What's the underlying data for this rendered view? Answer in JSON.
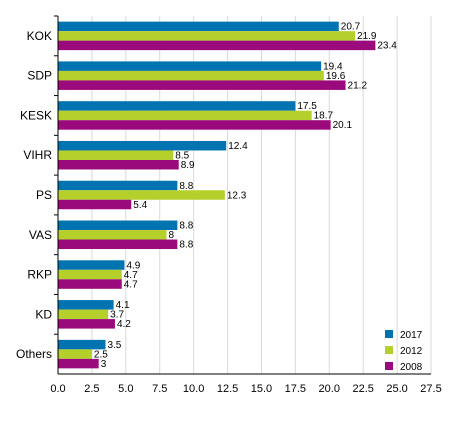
{
  "chart_data": {
    "type": "bar",
    "orientation": "horizontal",
    "categories": [
      "KOK",
      "SDP",
      "KESK",
      "VIHR",
      "PS",
      "VAS",
      "RKP",
      "KD",
      "Others"
    ],
    "series": [
      {
        "name": "2017",
        "color": "#0073b0",
        "values": [
          20.7,
          19.4,
          17.5,
          12.4,
          8.8,
          8.8,
          4.9,
          4.1,
          3.5
        ]
      },
      {
        "name": "2012",
        "color": "#b5cf2b",
        "values": [
          21.9,
          19.6,
          18.7,
          8.5,
          12.3,
          8.0,
          4.7,
          3.7,
          2.5
        ]
      },
      {
        "name": "2008",
        "color": "#9b0a7d",
        "values": [
          23.4,
          21.2,
          20.1,
          8.9,
          5.4,
          8.8,
          4.7,
          4.2,
          3.0
        ]
      }
    ],
    "xlim": [
      0,
      27.5
    ],
    "xticks": [
      "0.0",
      "2.5",
      "5.0",
      "7.5",
      "10.0",
      "12.5",
      "15.0",
      "17.5",
      "20.0",
      "22.5",
      "25.0",
      "27.5"
    ],
    "grid": "vertical",
    "legend_position": "bottom-right"
  }
}
